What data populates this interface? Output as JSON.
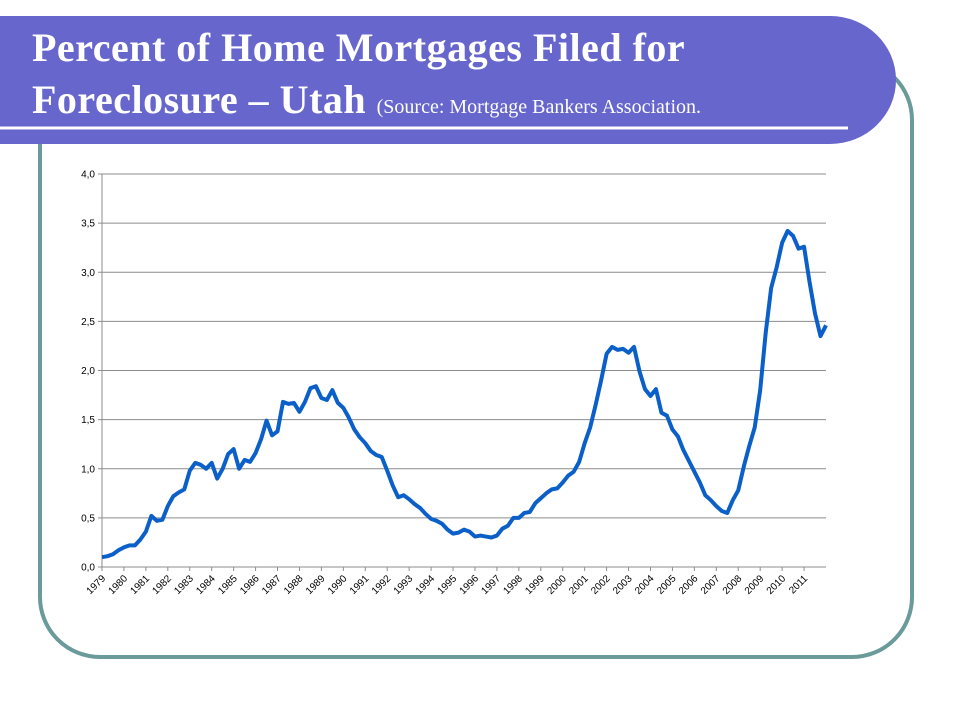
{
  "chart_data": {
    "type": "line",
    "title": "Percent of Home Mortgages Filed for Foreclosure – Utah",
    "subtitle": "(Source: Mortgage Bankers Association.",
    "categories": [
      "1979",
      null,
      null,
      null,
      "1980",
      null,
      null,
      null,
      "1981",
      null,
      null,
      null,
      "1982",
      null,
      null,
      null,
      "1983",
      null,
      null,
      null,
      "1984",
      null,
      null,
      null,
      "1985",
      null,
      null,
      null,
      "1986",
      null,
      null,
      null,
      "1987",
      null,
      null,
      null,
      "1988",
      null,
      null,
      null,
      "1989",
      null,
      null,
      null,
      "1990",
      null,
      null,
      null,
      "1991",
      null,
      null,
      null,
      "1992",
      null,
      null,
      null,
      "1993",
      null,
      null,
      null,
      "1994",
      null,
      null,
      null,
      "1995",
      null,
      null,
      null,
      "1996",
      null,
      null,
      null,
      "1997",
      null,
      null,
      null,
      "1998",
      null,
      null,
      null,
      "1999",
      null,
      null,
      null,
      "2000",
      null,
      null,
      null,
      "2001",
      null,
      null,
      null,
      "2002",
      null,
      null,
      null,
      "2003",
      null,
      null,
      null,
      "2004",
      null,
      null,
      null,
      "2005",
      null,
      null,
      null,
      "2006",
      null,
      null,
      null,
      "2007",
      null,
      null,
      null,
      "2008",
      null,
      null,
      null,
      "2009",
      null,
      null,
      null,
      "2010",
      null,
      null,
      null,
      "2011",
      null,
      null,
      null,
      null
    ],
    "series": [
      {
        "name": "Utah",
        "color": "#0a5fc8",
        "values": [
          0.1,
          0.11,
          0.13,
          0.17,
          0.2,
          0.22,
          0.22,
          0.28,
          0.36,
          0.52,
          0.47,
          0.48,
          0.62,
          0.72,
          0.76,
          0.79,
          0.98,
          1.06,
          1.04,
          1.0,
          1.06,
          0.9,
          1.0,
          1.15,
          1.2,
          1.0,
          1.09,
          1.07,
          1.16,
          1.3,
          1.49,
          1.34,
          1.38,
          1.68,
          1.66,
          1.67,
          1.58,
          1.68,
          1.82,
          1.84,
          1.72,
          1.7,
          1.8,
          1.67,
          1.62,
          1.52,
          1.4,
          1.32,
          1.26,
          1.18,
          1.14,
          1.12,
          0.98,
          0.83,
          0.71,
          0.73,
          0.69,
          0.64,
          0.6,
          0.54,
          0.49,
          0.47,
          0.44,
          0.38,
          0.34,
          0.35,
          0.38,
          0.36,
          0.31,
          0.32,
          0.31,
          0.3,
          0.32,
          0.39,
          0.42,
          0.5,
          0.5,
          0.55,
          0.56,
          0.65,
          0.7,
          0.75,
          0.79,
          0.8,
          0.86,
          0.93,
          0.97,
          1.07,
          1.26,
          1.42,
          1.65,
          1.9,
          2.17,
          2.24,
          2.21,
          2.22,
          2.18,
          2.24,
          1.99,
          1.81,
          1.74,
          1.81,
          1.57,
          1.54,
          1.4,
          1.33,
          1.19,
          1.08,
          0.97,
          0.86,
          0.73,
          0.68,
          0.62,
          0.57,
          0.55,
          0.68,
          0.78,
          1.02,
          1.23,
          1.42,
          1.8,
          2.38,
          2.84,
          3.05,
          3.3,
          3.42,
          3.37,
          3.24,
          3.26,
          2.9,
          2.58,
          2.35,
          2.46
        ]
      }
    ],
    "ylim": [
      0,
      4
    ],
    "yticks": [
      {
        "value": 0,
        "label": "0,0"
      },
      {
        "value": 0.5,
        "label": "0,5"
      },
      {
        "value": 1,
        "label": "1,0"
      },
      {
        "value": 1.5,
        "label": "1,5"
      },
      {
        "value": 2,
        "label": "2,0"
      },
      {
        "value": 2.5,
        "label": "2,5"
      },
      {
        "value": 3,
        "label": "3,0"
      },
      {
        "value": 3.5,
        "label": "3,5"
      },
      {
        "value": 4,
        "label": "4,0"
      }
    ],
    "grid": true
  }
}
